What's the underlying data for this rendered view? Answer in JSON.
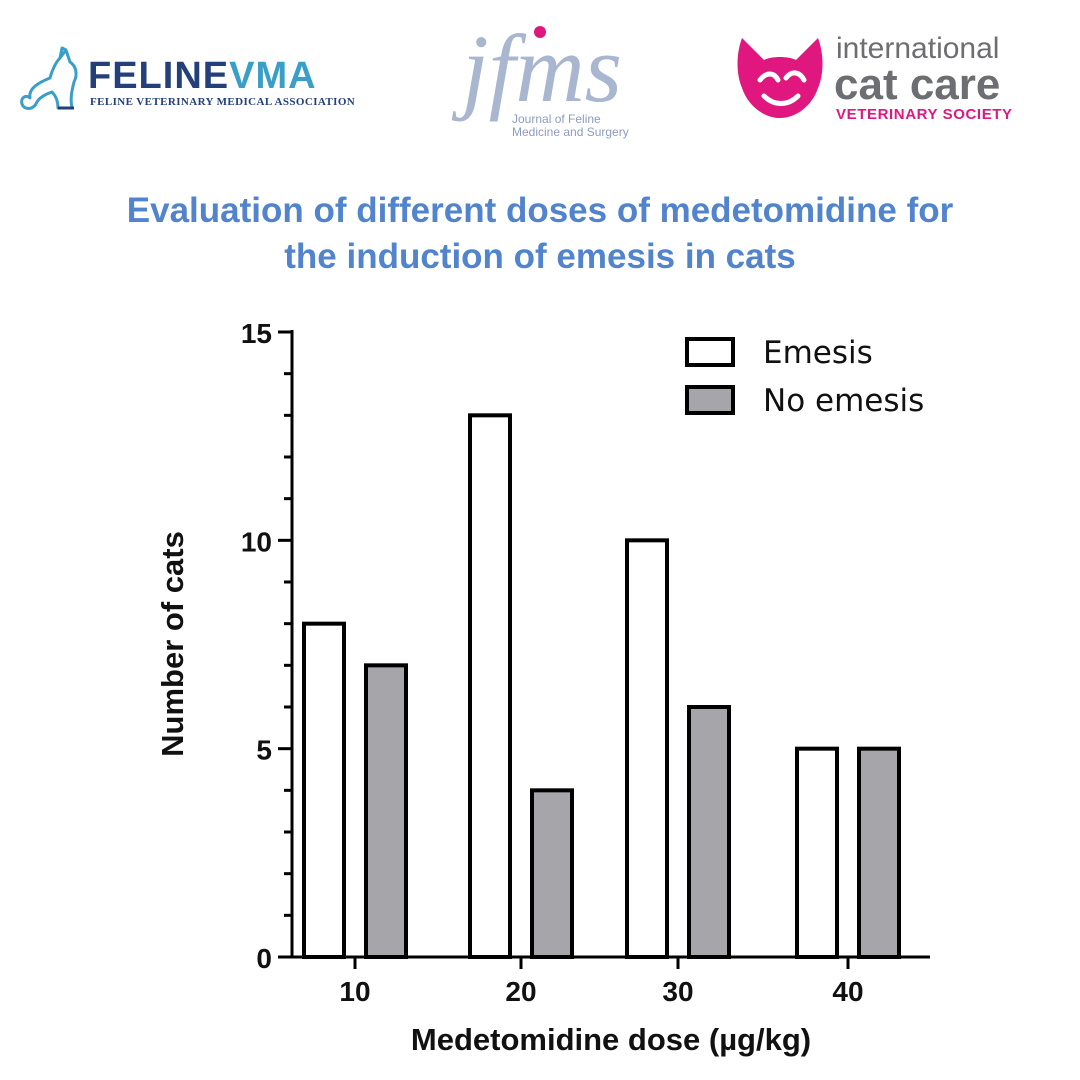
{
  "logos": {
    "felinevma": {
      "name_part1": "FELINE",
      "name_part2": "VMA",
      "tagline": "FELINE VETERINARY MEDICAL ASSOCIATION",
      "color_primary": "#24407a",
      "color_accent": "#3a9fc8"
    },
    "jfms": {
      "mark": "jfms",
      "subtitle_line1": "Journal of Feline",
      "subtitle_line2": "Medicine and Surgery",
      "color": "#a9b6d0",
      "accent": "#e0177e"
    },
    "icatcare": {
      "line1": "international",
      "line2": "cat care",
      "line3": "VETERINARY SOCIETY",
      "color_text": "#6d6e71",
      "color_accent": "#e0177e"
    }
  },
  "title": {
    "line1": "Evaluation of different doses of medetomidine for",
    "line2": "the induction of emesis in cats",
    "color": "#5184cc"
  },
  "chart_data": {
    "type": "bar",
    "categories": [
      "10",
      "20",
      "30",
      "40"
    ],
    "series": [
      {
        "name": "Emesis",
        "values": [
          8,
          13,
          10,
          5
        ],
        "color": "#ffffff"
      },
      {
        "name": "No emesis",
        "values": [
          7,
          4,
          6,
          5
        ],
        "color": "#a5a5aa"
      }
    ],
    "xlabel": "Medetomidine dose (µg/kg)",
    "ylabel": "Number of cats",
    "ylim": [
      0,
      15
    ],
    "yticks": [
      0,
      5,
      10,
      15
    ],
    "legend_position": "top-right",
    "grid": false
  }
}
